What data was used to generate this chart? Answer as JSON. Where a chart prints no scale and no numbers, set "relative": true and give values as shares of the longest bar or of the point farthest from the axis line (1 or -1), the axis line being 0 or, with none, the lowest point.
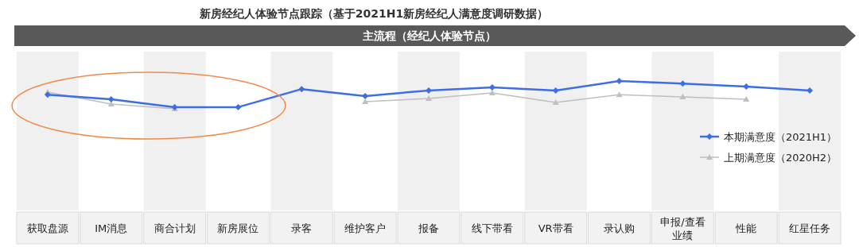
{
  "chart_data": {
    "type": "line",
    "title": "新房经纪人体验节点跟踪（基于2021H1新房经纪人满意度调研数据）",
    "subtitle": "主流程（经纪人体验节点）",
    "relative": true,
    "marker": "diamond",
    "legend": "right",
    "grid": false,
    "categories": [
      "获取盘源",
      "IM消息",
      "商合计划",
      "新房展位",
      "录客",
      "维护客户",
      "报备",
      "线下带看",
      "VR带看",
      "录认购",
      "申报/查看业绩",
      "性能",
      "红星任务"
    ],
    "series": [
      {
        "name": "本期满意度（2021H1）",
        "color": "#3d6ee8",
        "values": [
          0.51,
          0.34,
          0.06,
          0.06,
          0.71,
          0.46,
          0.66,
          0.77,
          0.66,
          1,
          0.91,
          0.8,
          0.66
        ]
      },
      {
        "name": "上期满意度（2020H2）",
        "color": "#bfbfbf",
        "marker": "triangle",
        "values": [
          0.6,
          0.17,
          0,
          null,
          null,
          0.26,
          0.37,
          0.57,
          0.23,
          0.51,
          0.43,
          0.34,
          null
        ]
      }
    ]
  }
}
